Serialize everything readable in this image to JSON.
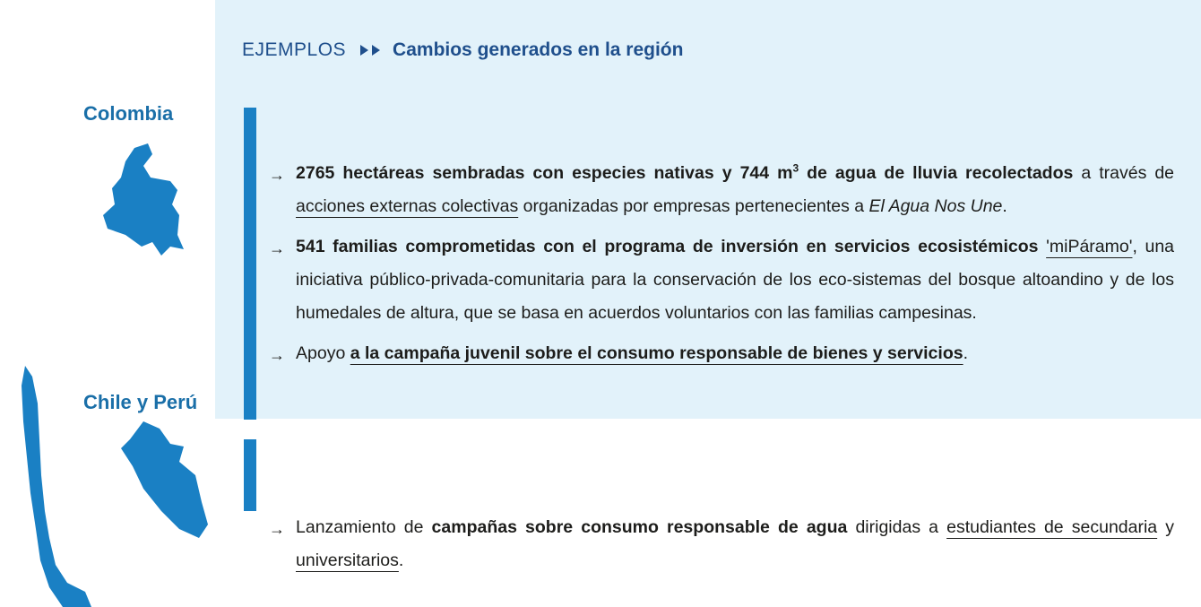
{
  "header": {
    "label": "EJEMPLOS",
    "title": "Cambios generados en la región"
  },
  "regions": [
    {
      "name": "Colombia"
    },
    {
      "name": "Chile y Perú"
    }
  ],
  "groups": [
    {
      "items": [
        {
          "marker": "→",
          "segments": [
            {
              "text": "2765 hectáreas sembradas con especies nativas y 744 m",
              "style": "bold"
            },
            {
              "text": "3",
              "style": "bold-sup"
            },
            {
              "text": " de agua de lluvia recolectados",
              "style": "bold"
            },
            {
              "text": " a través de ",
              "style": "plain"
            },
            {
              "text": "acciones externas colectivas",
              "style": "underline"
            },
            {
              "text": " organizadas por empresas pertenecientes a ",
              "style": "plain"
            },
            {
              "text": "El Agua Nos Une",
              "style": "italic"
            },
            {
              "text": ".",
              "style": "plain"
            }
          ]
        },
        {
          "marker": "→",
          "segments": [
            {
              "text": "541 familias comprometidas con el programa de inversión en servicios ecosistémicos",
              "style": "bold"
            },
            {
              "text": " ",
              "style": "plain"
            },
            {
              "text": "'miPáramo'",
              "style": "underline"
            },
            {
              "text": ", una iniciativa público-privada-comunitaria para la conservación de los eco-sistemas del bosque altoandino y de los humedales de altura, que se basa en acuerdos voluntarios con las familias campesinas.",
              "style": "plain"
            }
          ]
        },
        {
          "marker": "→",
          "segments": [
            {
              "text": "Apoyo ",
              "style": "plain"
            },
            {
              "text": "a la campaña juvenil sobre el consumo responsable de bienes y servicios",
              "style": "bold-underline"
            },
            {
              "text": ".",
              "style": "plain"
            }
          ]
        }
      ]
    },
    {
      "items": [
        {
          "marker": "→",
          "segments": [
            {
              "text": "Lanzamiento de ",
              "style": "plain"
            },
            {
              "text": "campañas sobre consumo responsable de agua",
              "style": "bold"
            },
            {
              "text": " dirigidas a ",
              "style": "plain"
            },
            {
              "text": "estudiantes de secundaria",
              "style": "underline"
            },
            {
              "text": " y ",
              "style": "plain"
            },
            {
              "text": "universitarios",
              "style": "underline"
            },
            {
              "text": ".",
              "style": "plain"
            }
          ]
        }
      ]
    }
  ]
}
